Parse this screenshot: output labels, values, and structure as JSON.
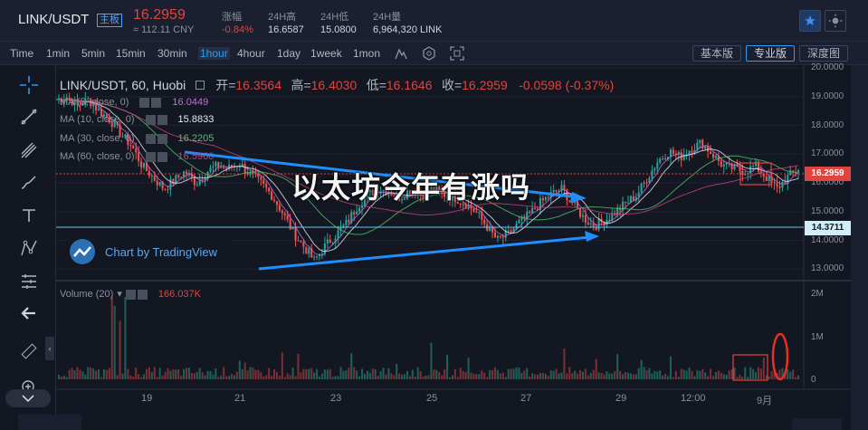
{
  "header": {
    "pair": "LINK/USDT",
    "pair_tag": "主板",
    "price": "16.2959",
    "price_cny": "≈ 112.11 CNY",
    "stats": [
      {
        "label": "涨幅",
        "value": "-0.84%",
        "color": "#e0443e"
      },
      {
        "label": "24H高",
        "value": "16.6587",
        "color": "#d1d4dc"
      },
      {
        "label": "24H低",
        "value": "15.0800",
        "color": "#d1d4dc"
      },
      {
        "label": "24H量",
        "value": "6,964,320 LINK",
        "color": "#d1d4dc"
      }
    ]
  },
  "toolbar": {
    "intervals": [
      "Time",
      "1min",
      "5min",
      "15min",
      "30min",
      "1hour",
      "4hour",
      "1day",
      "1week",
      "1mon"
    ],
    "active_interval": "1hour",
    "views": [
      "基本版",
      "专业版",
      "深度图"
    ],
    "active_view": "专业版"
  },
  "legend": {
    "symbol": "LINK/USDT, 60, Huobi",
    "open_label": "开=",
    "open": "16.3564",
    "high_label": "高=",
    "high": "16.4030",
    "low_label": "低=",
    "low": "16.1646",
    "close_label": "收=",
    "close": "16.2959",
    "change": "-0.0598 (-0.37%)",
    "mas": [
      {
        "name": "MA (5, close, 0)",
        "value": "16.0449",
        "color": "#c66bd9"
      },
      {
        "name": "MA (10, close, 0)",
        "value": "15.8833",
        "color": "#e6e8ee"
      },
      {
        "name": "MA (30, close, 0)",
        "value": "16.2205",
        "color": "#4ec26a"
      },
      {
        "name": "MA (60, close, 0)",
        "value": "16.5960",
        "color": "#c9417a"
      }
    ],
    "volume_name": "Volume (20)",
    "volume_value": "166.037K"
  },
  "watermark": "以太坊今年有涨吗",
  "branding": "Chart by TradingView",
  "price_axis": [
    "20.0000",
    "19.0000",
    "18.0000",
    "17.0000",
    "16.0000",
    "15.0000",
    "14.0000",
    "13.0000"
  ],
  "price_marker": "16.2959",
  "line_marker": "14.3711",
  "volume_axis": [
    "2M",
    "1M",
    "0"
  ],
  "time_axis": [
    "19",
    "21",
    "23",
    "25",
    "27",
    "29",
    "12:00",
    "9月"
  ],
  "chart_data": {
    "type": "candlestick",
    "ylim": [
      12.6,
      20.1
    ],
    "current_price": 16.2959,
    "horizontal_line": 14.3711,
    "candles": [
      18.9,
      19.0,
      18.7,
      18.9,
      18.5,
      18.2,
      17.7,
      17.3,
      16.6,
      16.2,
      15.8,
      16.1,
      16.4,
      16.0,
      16.4,
      16.6,
      16.5,
      16.7,
      16.3,
      16.0,
      15.6,
      15.0,
      14.3,
      13.8,
      13.3,
      13.8,
      14.2,
      14.6,
      15.2,
      15.6,
      15.8,
      15.7,
      15.5,
      15.8,
      15.6,
      15.8,
      15.6,
      15.5,
      15.3,
      15.0,
      14.5,
      14.0,
      14.2,
      14.6,
      14.9,
      15.3,
      15.6,
      15.8,
      15.3,
      14.8,
      14.5,
      14.7,
      15.0,
      15.3,
      15.6,
      16.2,
      16.8,
      17.1,
      16.9,
      17.2,
      17.4,
      17.0,
      16.6,
      16.5,
      16.4,
      16.6,
      16.2,
      15.8,
      16.2,
      16.5
    ],
    "volume_max_m": 2.2
  }
}
